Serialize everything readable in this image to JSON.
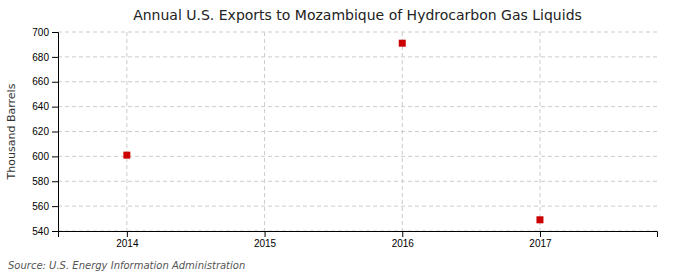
{
  "chart_data": {
    "type": "scatter",
    "title": "Annual U.S. Exports to Mozambique of Hydrocarbon Gas Liquids",
    "ylabel": "Thousand Barrels",
    "annotation": "Source: U.S. Energy Information Administration",
    "x": [
      2014,
      2016,
      2017
    ],
    "values": [
      601,
      691,
      549
    ],
    "xlim": [
      2013.5,
      2017.85
    ],
    "ylim": [
      540,
      700
    ],
    "xticks": [
      2014,
      2015,
      2016,
      2017
    ],
    "yticks": [
      540,
      560,
      580,
      600,
      620,
      640,
      660,
      680,
      700
    ],
    "color": "#cc0000",
    "marker": "square",
    "grid": true
  }
}
